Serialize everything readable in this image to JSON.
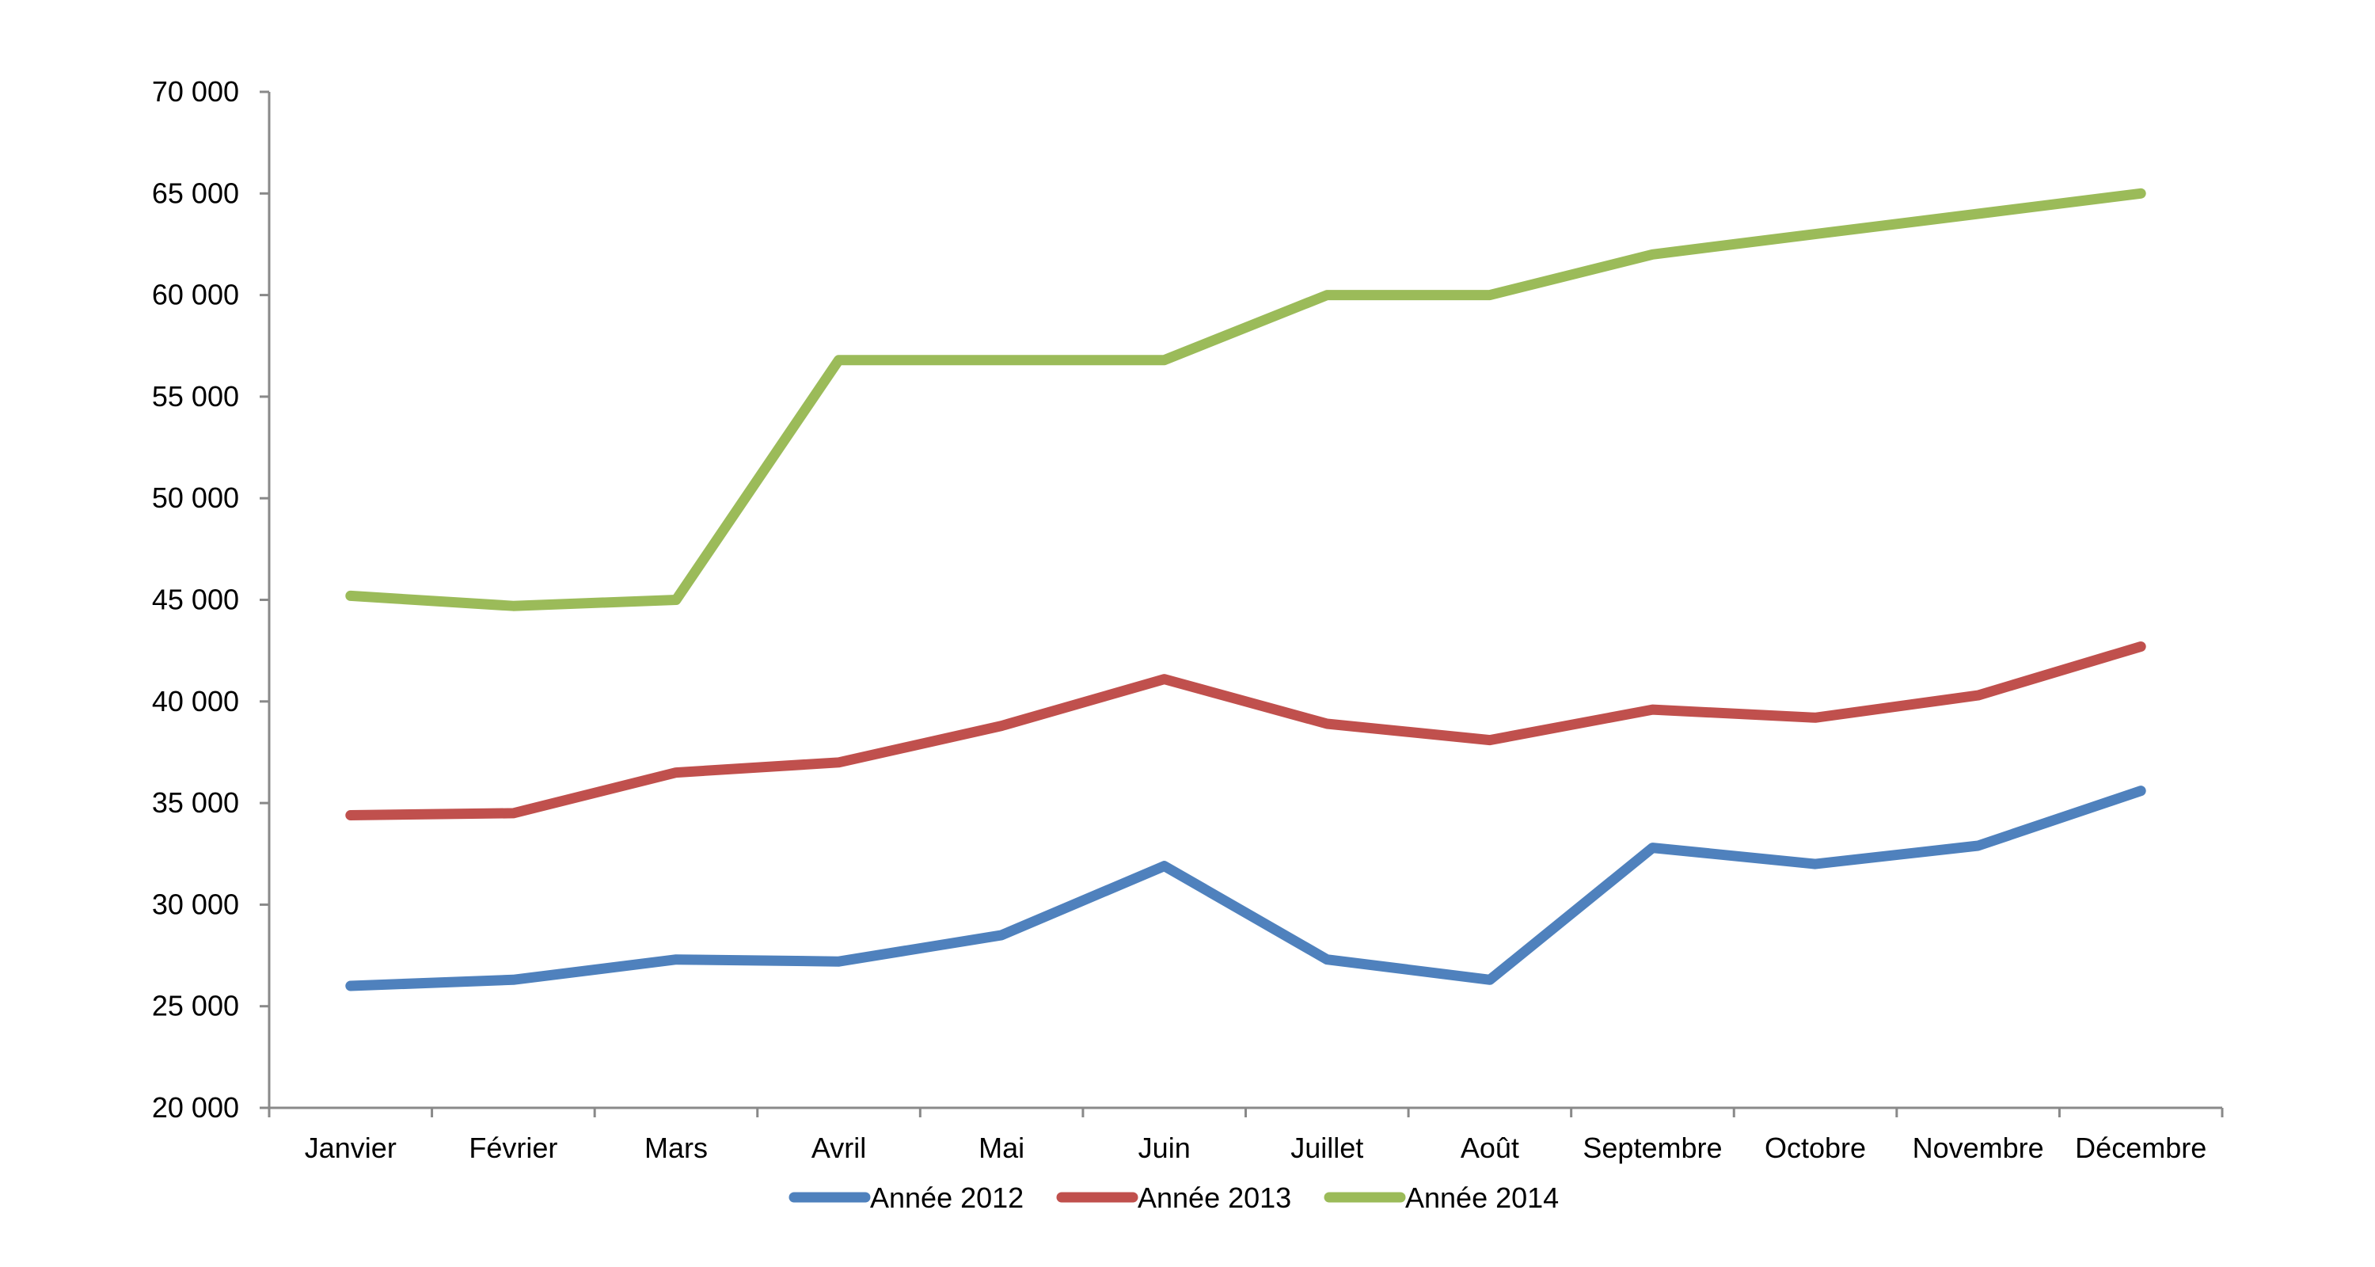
{
  "chart_data": {
    "type": "line",
    "title": "",
    "xlabel": "",
    "ylabel": "",
    "categories": [
      "Janvier",
      "Février",
      "Mars",
      "Avril",
      "Mai",
      "Juin",
      "Juillet",
      "Août",
      "Septembre",
      "Octobre",
      "Novembre",
      "Décembre"
    ],
    "ylim": [
      20000,
      70000
    ],
    "y_ticks": [
      20000,
      25000,
      30000,
      35000,
      40000,
      45000,
      50000,
      55000,
      60000,
      65000,
      70000
    ],
    "y_tick_labels": [
      "20 000",
      "25 000",
      "30 000",
      "35 000",
      "40 000",
      "45 000",
      "50 000",
      "55 000",
      "60 000",
      "65 000",
      "70 000"
    ],
    "grid": false,
    "legend_position": "bottom",
    "series": [
      {
        "name": "Année 2012",
        "color": "#4F81BD",
        "values": [
          26000,
          26300,
          27300,
          27200,
          28500,
          31900,
          27300,
          26300,
          32800,
          32000,
          32900,
          35600
        ]
      },
      {
        "name": "Année 2013",
        "color": "#C0504D",
        "values": [
          34400,
          34500,
          36500,
          37000,
          38800,
          41100,
          38900,
          38100,
          39600,
          39200,
          40300,
          42700
        ]
      },
      {
        "name": "Année 2014",
        "color": "#9BBB59",
        "values": [
          45200,
          44700,
          45000,
          56800,
          56800,
          56800,
          60000,
          60000,
          62000,
          63000,
          64000,
          65000
        ]
      }
    ]
  }
}
